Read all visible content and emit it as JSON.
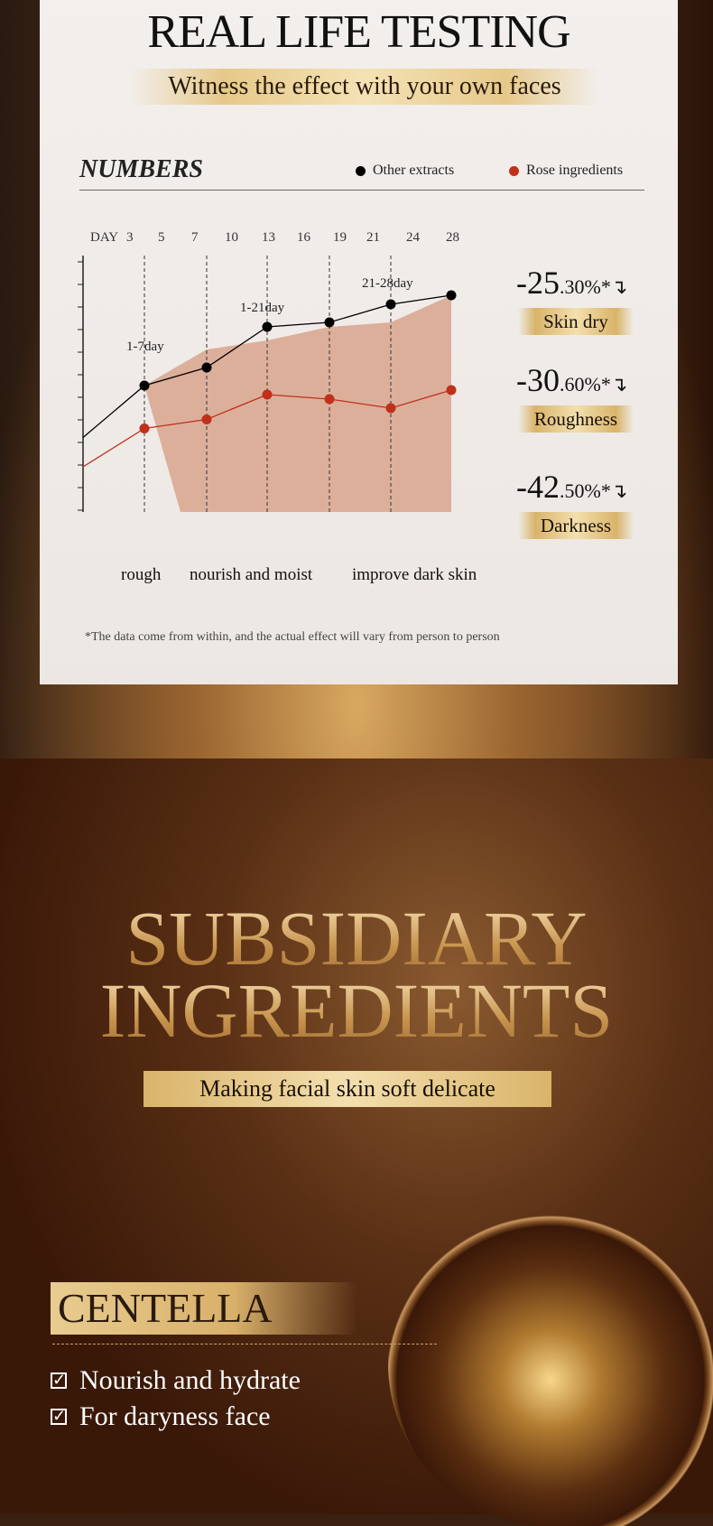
{
  "header": {
    "title": "REAL LIFE TESTING",
    "subtitle": "Witness the effect with your own faces"
  },
  "chart_panel": {
    "heading": "NUMBERS",
    "note": "*The data come from within, and the actual effect will vary from person to person"
  },
  "chart_data": {
    "type": "line",
    "x_tick_label": "DAY",
    "x_ticks": [
      "3",
      "5",
      "7",
      "10",
      "13",
      "16",
      "19",
      "21",
      "24",
      "28"
    ],
    "annotations": [
      "1-7day",
      "1-21day",
      "21-28day"
    ],
    "series": [
      {
        "name": "Other extracts",
        "color": "#000000",
        "values": [
          3.3,
          5.6,
          6.4,
          8.2,
          8.4,
          9.2,
          9.6
        ]
      },
      {
        "name": "Rose ingredients",
        "color": "#c0301a",
        "values": [
          2.0,
          3.7,
          4.1,
          5.2,
          5.0,
          4.6,
          5.4
        ]
      }
    ],
    "area": {
      "color": "#d9a892",
      "values": [
        5.6,
        7.2,
        7.6,
        8.2,
        8.4,
        9.6
      ]
    },
    "phases": [
      "rough",
      "nourish and moist",
      "improve dark skin"
    ],
    "grid": "dashed vertical lines",
    "legend": "top-right"
  },
  "stats": [
    {
      "value": "-25",
      "decimal": ".30%",
      "label": "Skin dry"
    },
    {
      "value": "-30",
      "decimal": ".60%",
      "label": "Roughness"
    },
    {
      "value": "-42",
      "decimal": ".50%",
      "label": "Darkness"
    }
  ],
  "ingredients": {
    "title_line1": "SUBSIDIARY",
    "title_line2": "INGREDIENTS",
    "tagline": "Making facial skin soft delicate",
    "name": "CENTELLA",
    "features": [
      "Nourish and hydrate",
      "For daryness face"
    ]
  }
}
